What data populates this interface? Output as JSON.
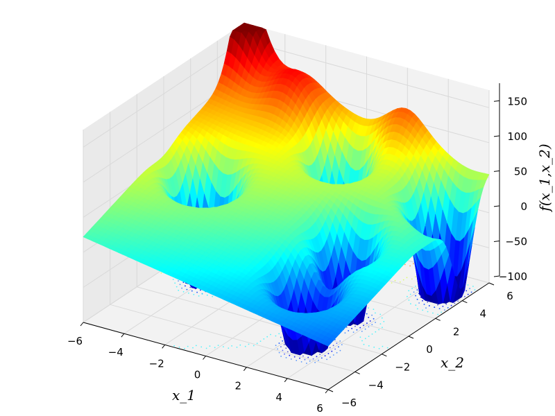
{
  "chart_data": {
    "type": "surface3d",
    "title": "",
    "xlabel": "x_1",
    "ylabel": "x_2",
    "zlabel": "f(x_1,x_2)",
    "xlim": [
      -6,
      6
    ],
    "ylim": [
      -6,
      6
    ],
    "zlim": [
      -100,
      175
    ],
    "xticks": [
      "−6",
      "−4",
      "−2",
      "0",
      "2",
      "4",
      "6"
    ],
    "yticks": [
      "−6",
      "−4",
      "−2",
      "0",
      "2",
      "4",
      "6"
    ],
    "zticks": [
      "−100",
      "−50",
      "0",
      "50",
      "100",
      "150"
    ],
    "colormap": "jet",
    "grid": true,
    "contours_on_floor": true,
    "surface_features": {
      "minima": [
        {
          "x1": -4,
          "x2": 0,
          "f": -100
        },
        {
          "x1": 0,
          "x2": 4,
          "f": -50
        },
        {
          "x1": 3,
          "x2": 0,
          "f": -50
        },
        {
          "x1": 5,
          "x2": 4,
          "f": -100
        },
        {
          "x1": 3,
          "x2": -3,
          "f": -50
        }
      ],
      "peaks": [
        {
          "x1": -6,
          "x2": 6,
          "f": 170
        },
        {
          "x1": 4,
          "x2": 1,
          "f": 70
        },
        {
          "x1": -3,
          "x2": 5,
          "f": 100
        },
        {
          "x1": 2,
          "x2": 6,
          "f": 95
        },
        {
          "x1": 6,
          "x2": 2,
          "f": 50
        }
      ],
      "linear_trend": {
        "slope_x1": 5,
        "slope_x2": 8
      }
    }
  }
}
